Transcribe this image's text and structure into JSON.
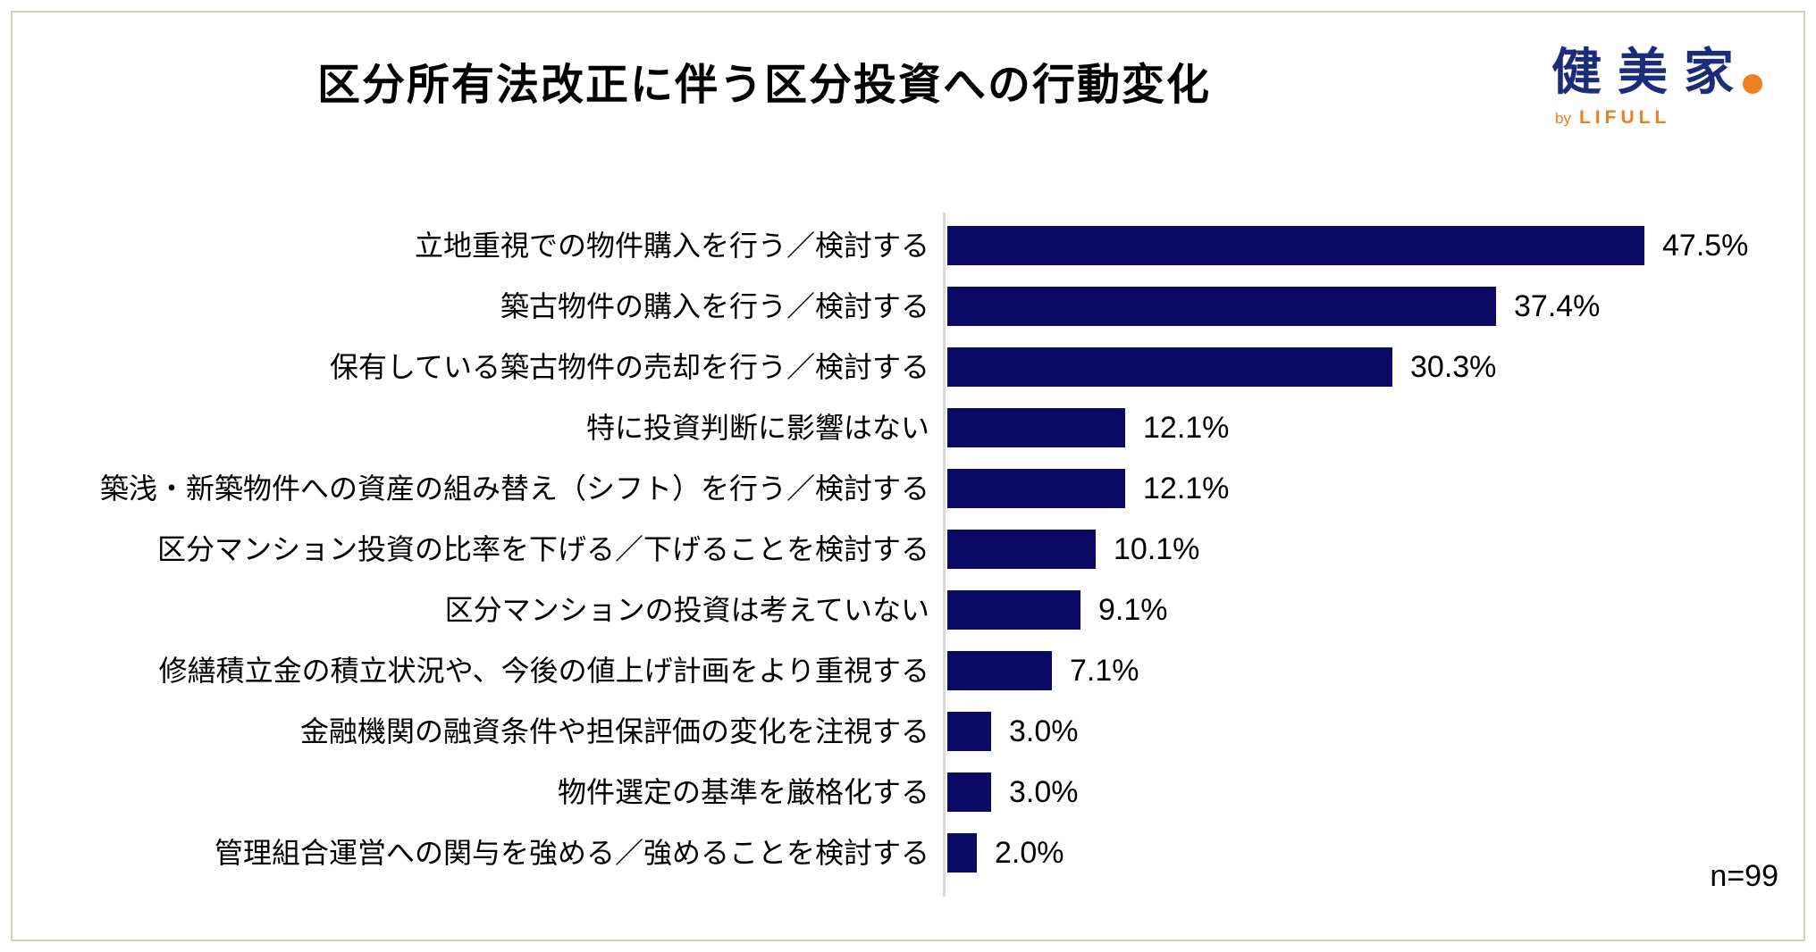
{
  "header": {
    "title": "区分所有法改正に伴う区分投資への行動変化"
  },
  "logo": {
    "brand": "健美家",
    "by": "by",
    "company": "LIFULL"
  },
  "footer": {
    "sample_size": "n=99"
  },
  "colors": {
    "bar": "#0a0a64",
    "logo_navy": "#1b2d7a",
    "logo_orange": "#f07f1f",
    "axis_line": "#d9d9d9",
    "frame_border": "#d5cdbd",
    "text": "#000000"
  },
  "chart_data": {
    "type": "bar",
    "orientation": "horizontal",
    "title": "区分所有法改正に伴う区分投資への行動変化",
    "categories": [
      "立地重視での物件購入を行う／検討する",
      "築古物件の購入を行う／検討する",
      "保有している築古物件の売却を行う／検討する",
      "特に投資判断に影響はない",
      "築浅・新築物件への資産の組み替え（シフト）を行う／検討する",
      "区分マンション投資の比率を下げる／下げることを検討する",
      "区分マンションの投資は考えていない",
      "修繕積立金の積立状況や、今後の値上げ計画をより重視する",
      "金融機関の融資条件や担保評価の変化を注視する",
      "物件選定の基準を厳格化する",
      "管理組合運営への関与を強める／強めることを検討する"
    ],
    "values": [
      47.5,
      37.4,
      30.3,
      12.1,
      12.1,
      10.1,
      9.1,
      7.1,
      3.0,
      3.0,
      2.0
    ],
    "value_labels": [
      "47.5%",
      "37.4%",
      "30.3%",
      "12.1%",
      "12.1%",
      "10.1%",
      "9.1%",
      "7.1%",
      "3.0%",
      "3.0%",
      "2.0%"
    ],
    "unit": "%",
    "xlim": [
      0,
      50
    ],
    "grid": false,
    "legend": false,
    "value_labels_position": "end-of-bar",
    "sample_size": "n=99",
    "bar_color": "#0a0a64"
  }
}
